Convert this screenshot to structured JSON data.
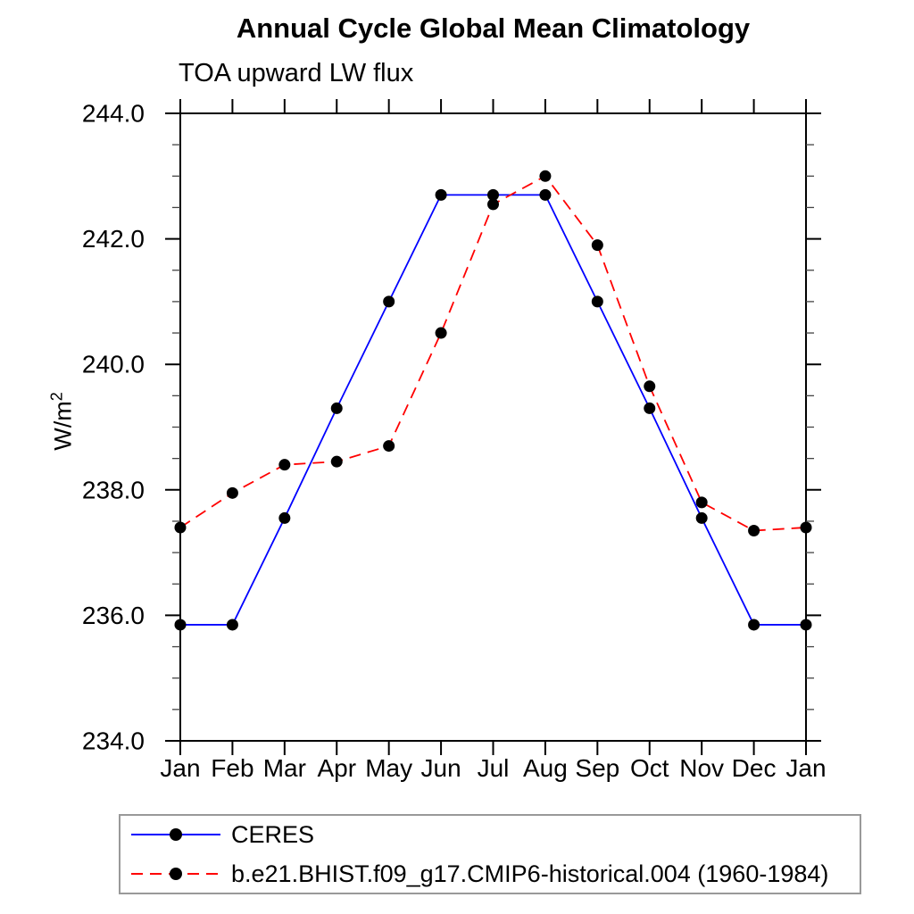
{
  "page": {
    "background": "#ffffff"
  },
  "chart_data": {
    "type": "line",
    "title": "Annual Cycle Global Mean Climatology",
    "subtitle": "TOA upward LW flux",
    "ylabel_base": "W/m",
    "ylabel_exponent": "2",
    "categories": [
      "Jan",
      "Feb",
      "Mar",
      "Apr",
      "May",
      "Jun",
      "Jul",
      "Aug",
      "Sep",
      "Oct",
      "Nov",
      "Dec",
      "Jan"
    ],
    "ylim": [
      234.0,
      244.0
    ],
    "ytick_interval": 2.0,
    "ytick_minor_interval": 0.5,
    "ytick_labels": [
      "234.0",
      "236.0",
      "238.0",
      "240.0",
      "242.0",
      "244.0"
    ],
    "grid": "off",
    "legend_position": "bottom-left",
    "marker": {
      "shape": "circle",
      "color": "#000000"
    },
    "axis_color": "#000000",
    "series": [
      {
        "name": "CERES",
        "color": "#0000ff",
        "line_style": "solid",
        "values": [
          235.85,
          235.85,
          237.55,
          239.3,
          241.0,
          242.7,
          242.7,
          242.7,
          241.0,
          239.3,
          237.55,
          235.85,
          235.85
        ]
      },
      {
        "name": "b.e21.BHIST.f09_g17.CMIP6-historical.004 (1960-1984)",
        "color": "#ff0000",
        "line_style": "dashed",
        "values": [
          237.4,
          237.95,
          238.4,
          238.45,
          238.7,
          240.5,
          242.55,
          243.0,
          241.9,
          239.65,
          237.8,
          237.35,
          237.4
        ]
      }
    ]
  }
}
